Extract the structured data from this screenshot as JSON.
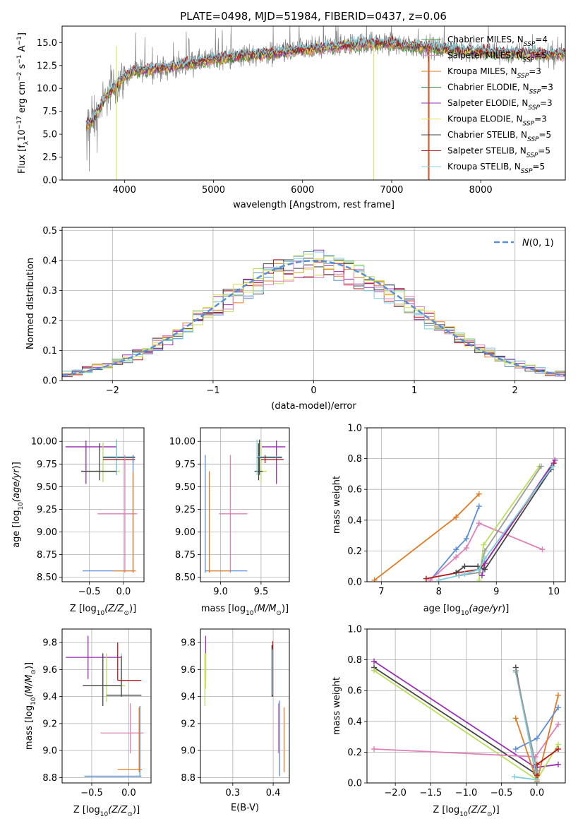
{
  "figure_title": "PLATE=0498, MJD=51984, FIBERID=0437, z=0.06",
  "colors": {
    "data": "#808080",
    "Chabrier MILES": "#4c9a3c",
    "Salpeter MILES": "#e28fd0",
    "Kroupa MILES": "#e07b22",
    "Chabrier ELODIE": "#3f7f3f",
    "Salpeter ELODIE": "#9a2fb5",
    "Kroupa ELODIE": "#e2e24a",
    "Chabrier STELIB": "#444444",
    "Salpeter STELIB": "#b51818",
    "Kroupa STELIB": "#7ccfe0",
    "blue": "#5b8ed8",
    "pink": "#e07fb8",
    "orange": "#e07b22",
    "lime": "#b8e05a",
    "purple": "#9a2fb5",
    "dark": "#444444",
    "gray": "#9a9a9a",
    "teal": "#7ccfe0",
    "red": "#b51818",
    "yellow": "#d8e04a"
  },
  "chart_data": [
    {
      "id": "spectrum",
      "type": "line",
      "title": "PLATE=0498, MJD=51984, FIBERID=0437, z=0.06",
      "xlabel": "wavelength [Angstrom, rest frame]",
      "ylabel": "Flux [f_λ 10^-17 erg cm^-2 s^-1 A^-1]",
      "xlim": [
        3300,
        8950
      ],
      "ylim": [
        0,
        16.8
      ],
      "xticks": [
        "4000",
        "5000",
        "6000",
        "7000",
        "8000"
      ],
      "yticks": [
        "0.0",
        "2.5",
        "5.0",
        "7.5",
        "10.0",
        "12.5",
        "15.0"
      ],
      "legend": [
        "Chabrier MILES, N_SSP=4",
        "Salpeter MILES, N_SSP=5",
        "Kroupa MILES, N_SSP=3",
        "Chabrier ELODIE, N_SSP=3",
        "Salpeter ELODIE, N_SSP=3",
        "Kroupa ELODIE, N_SSP=3",
        "Chabrier STELIB, N_SSP=5",
        "Salpeter STELIB, N_SSP=5",
        "Kroupa STELIB, N_SSP=5"
      ],
      "legend_display": [
        {
          "pre": "Chabrier MILES, N",
          "sub": "SSP",
          "post": "=4"
        },
        {
          "pre": "Salpeter MILES, N",
          "sub": "SSP",
          "post": "=5"
        },
        {
          "pre": "Kroupa MILES, N",
          "sub": "SSP",
          "post": "=3"
        },
        {
          "pre": "Chabrier ELODIE, N",
          "sub": "SSP",
          "post": "=3"
        },
        {
          "pre": "Salpeter ELODIE, N",
          "sub": "SSP",
          "post": "=3"
        },
        {
          "pre": "Kroupa ELODIE, N",
          "sub": "SSP",
          "post": "=3"
        },
        {
          "pre": "Chabrier STELIB, N",
          "sub": "SSP",
          "post": "=5"
        },
        {
          "pre": "Salpeter STELIB, N",
          "sub": "SSP",
          "post": "=5"
        },
        {
          "pre": "Kroupa STELIB, N",
          "sub": "SSP",
          "post": "=5"
        }
      ],
      "legend_position": "upper-right",
      "continuum": {
        "x": [
          3570,
          3650,
          3700,
          3800,
          3900,
          4000,
          4100,
          4200,
          4300,
          4500,
          4800,
          5000,
          5200,
          5500,
          5800,
          6000,
          6300,
          6500,
          6700,
          7000,
          7300,
          7600,
          8000,
          8400,
          8900
        ],
        "y": [
          6.0,
          6.5,
          7.6,
          9.2,
          10.3,
          11.3,
          11.8,
          12.0,
          12.1,
          12.3,
          12.8,
          13.2,
          13.4,
          13.7,
          14.0,
          14.2,
          14.5,
          14.7,
          14.9,
          14.9,
          14.6,
          14.3,
          14.0,
          13.8,
          13.7
        ]
      }
    },
    {
      "id": "residuals",
      "type": "line",
      "xlabel": "(data-model)/error",
      "ylabel": "Normed distribution",
      "xlim": [
        -2.5,
        2.5
      ],
      "ylim": [
        0,
        0.51
      ],
      "xticks": [
        "−2",
        "−1",
        "0",
        "1",
        "2"
      ],
      "xtick_values": [
        -2,
        -1,
        0,
        1,
        2
      ],
      "yticks": [
        "0.0",
        "0.1",
        "0.2",
        "0.3",
        "0.4",
        "0.5"
      ],
      "legend": [
        "N(0,1)"
      ],
      "legend_position": "upper-right",
      "gaussian": {
        "mean": 0,
        "sigma": 1
      }
    },
    {
      "id": "age_vs_Z",
      "type": "scatter",
      "xlabel": "Z [log10(Z/Z⊙)]",
      "ylabel": "age  [log10(age/yr)]",
      "xlim": [
        -0.9,
        0.3
      ],
      "ylim": [
        8.45,
        10.15
      ],
      "xticks": [
        "−0.5",
        "0.0"
      ],
      "xtick_values": [
        -0.5,
        0.0
      ],
      "yticks": [
        "8.50",
        "8.75",
        "9.00",
        "9.25",
        "9.50",
        "9.75",
        "10.00"
      ],
      "errorbars": [
        {
          "x": -0.55,
          "y": 9.94,
          "x0": -0.85,
          "x1": -0.1,
          "y0": 9.53,
          "y1": 10.01,
          "color": "purple"
        },
        {
          "x": -0.3,
          "y": 9.67,
          "x0": -0.62,
          "x1": -0.05,
          "y0": 9.55,
          "y1": 9.99,
          "color": "lime"
        },
        {
          "x": -0.35,
          "y": 9.67,
          "x0": -0.62,
          "x1": -0.1,
          "y0": 9.57,
          "y1": 9.98,
          "color": "dark"
        },
        {
          "x": -0.1,
          "y": 9.82,
          "x0": -0.3,
          "x1": 0.17,
          "y0": 9.63,
          "y1": 10.02,
          "color": "dark"
        },
        {
          "x": -0.1,
          "y": 9.83,
          "x0": -0.3,
          "x1": 0.17,
          "y0": 9.63,
          "y1": 10.02,
          "color": "teal"
        },
        {
          "x": 0.14,
          "y": 9.8,
          "x0": -0.3,
          "x1": 0.17,
          "y0": 9.76,
          "y1": 9.85,
          "color": "red"
        },
        {
          "x": 0.02,
          "y": 9.2,
          "x0": -0.38,
          "x1": 0.2,
          "y0": 8.55,
          "y1": 9.85,
          "color": "pink"
        },
        {
          "x": 0.14,
          "y": 8.57,
          "x0": -0.6,
          "x1": 0.17,
          "y0": 8.55,
          "y1": 9.85,
          "color": "blue"
        },
        {
          "x": 0.14,
          "y": 8.57,
          "x0": -0.15,
          "x1": 0.18,
          "y0": 8.55,
          "y1": 9.67,
          "color": "orange"
        }
      ]
    },
    {
      "id": "age_vs_mass",
      "type": "scatter",
      "xlabel": "mass [log10(M/M⊙)]",
      "ylabel": "",
      "xlim": [
        8.75,
        9.85
      ],
      "ylim": [
        8.45,
        10.15
      ],
      "xticks": [
        "9.0",
        "9.5"
      ],
      "xtick_values": [
        9.0,
        9.5
      ],
      "yticks": [
        "8.50",
        "8.75",
        "9.00",
        "9.25",
        "9.50",
        "9.75",
        "10.00"
      ],
      "errorbars": [
        {
          "x": 9.69,
          "y": 9.94,
          "x0": 9.51,
          "x1": 9.8,
          "y0": 9.53,
          "y1": 10.01,
          "color": "purple"
        },
        {
          "x": 9.5,
          "y": 9.67,
          "x0": 9.42,
          "x1": 9.57,
          "y0": 9.55,
          "y1": 9.99,
          "color": "lime"
        },
        {
          "x": 9.47,
          "y": 9.67,
          "x0": 9.42,
          "x1": 9.52,
          "y0": 9.57,
          "y1": 9.98,
          "color": "dark"
        },
        {
          "x": 9.48,
          "y": 9.82,
          "x0": 9.45,
          "x1": 9.76,
          "y0": 9.63,
          "y1": 10.02,
          "color": "dark"
        },
        {
          "x": 9.45,
          "y": 9.83,
          "x0": 9.45,
          "x1": 9.76,
          "y0": 9.63,
          "y1": 10.02,
          "color": "teal"
        },
        {
          "x": 9.55,
          "y": 9.8,
          "x0": 9.5,
          "x1": 9.78,
          "y0": 9.76,
          "y1": 9.85,
          "color": "red"
        },
        {
          "x": 9.12,
          "y": 9.2,
          "x0": 8.98,
          "x1": 9.33,
          "y0": 8.55,
          "y1": 9.85,
          "color": "pink"
        },
        {
          "x": 8.81,
          "y": 8.57,
          "x0": 8.81,
          "x1": 9.33,
          "y0": 8.55,
          "y1": 9.85,
          "color": "blue"
        },
        {
          "x": 8.86,
          "y": 8.57,
          "x0": 8.84,
          "x1": 9.12,
          "y0": 8.55,
          "y1": 9.67,
          "color": "orange"
        }
      ]
    },
    {
      "id": "mass_weight_vs_age",
      "type": "line",
      "xlabel": "age  [log10(age/yr)]",
      "ylabel": "mass weight",
      "xlim": [
        6.75,
        10.2
      ],
      "ylim": [
        0,
        1.0
      ],
      "xticks": [
        "7",
        "8",
        "9",
        "10"
      ],
      "xtick_values": [
        7,
        8,
        9,
        10
      ],
      "yticks": [
        "0.0",
        "0.2",
        "0.4",
        "0.6",
        "0.8",
        "1.0"
      ],
      "series": [
        {
          "color": "orange",
          "x": [
            6.88,
            8.3,
            8.7
          ],
          "y": [
            0.01,
            0.42,
            0.57
          ]
        },
        {
          "color": "blue",
          "x": [
            7.85,
            8.3,
            8.48,
            8.7
          ],
          "y": [
            0.01,
            0.21,
            0.28,
            0.49
          ]
        },
        {
          "color": "pink",
          "x": [
            7.85,
            8.3,
            8.48,
            8.7,
            9.8
          ],
          "y": [
            0.01,
            0.16,
            0.22,
            0.38,
            0.21
          ]
        },
        {
          "color": "lime",
          "x": [
            8.7,
            8.78,
            9.75
          ],
          "y": [
            0.01,
            0.24,
            0.75
          ]
        },
        {
          "color": "red",
          "x": [
            7.78,
            8.35,
            8.7,
            8.8,
            10.0
          ],
          "y": [
            0.02,
            0.06,
            0.08,
            0.12,
            0.77
          ]
        },
        {
          "color": "purple",
          "x": [
            8.75,
            8.8,
            10.02
          ],
          "y": [
            0.04,
            0.12,
            0.79
          ]
        },
        {
          "color": "dark",
          "x": [
            8.3,
            8.45,
            8.68,
            8.8,
            9.95
          ],
          "y": [
            0.06,
            0.1,
            0.1,
            0.08,
            0.73
          ]
        },
        {
          "color": "gray",
          "x": [
            8.35,
            8.7,
            8.8,
            9.78
          ],
          "y": [
            0.04,
            0.06,
            0.2,
            0.75
          ]
        },
        {
          "color": "teal",
          "x": [
            8.0,
            8.45,
            8.7,
            8.8,
            9.98
          ],
          "y": [
            0.01,
            0.05,
            0.08,
            0.15,
            0.75
          ]
        }
      ]
    },
    {
      "id": "mass_vs_Z",
      "type": "scatter",
      "xlabel": "Z [log10(Z/Z⊙)]",
      "ylabel": "mass [log10(M/M⊙)]",
      "xlim": [
        -0.9,
        0.3
      ],
      "ylim": [
        8.76,
        9.9
      ],
      "xticks": [
        "−0.5",
        "0.0"
      ],
      "xtick_values": [
        -0.5,
        0.0
      ],
      "yticks": [
        "8.8",
        "9.0",
        "9.2",
        "9.4",
        "9.6",
        "9.8"
      ],
      "errorbars": [
        {
          "x": -0.55,
          "y": 9.69,
          "x0": -0.85,
          "x1": -0.1,
          "y0": 9.53,
          "y1": 9.85,
          "color": "purple"
        },
        {
          "x": -0.3,
          "y": 9.48,
          "x0": -0.62,
          "x1": -0.05,
          "y0": 9.36,
          "y1": 9.72,
          "color": "lime"
        },
        {
          "x": -0.35,
          "y": 9.48,
          "x0": -0.62,
          "x1": -0.1,
          "y0": 9.33,
          "y1": 9.72,
          "color": "dark"
        },
        {
          "x": -0.1,
          "y": 9.41,
          "x0": -0.3,
          "x1": 0.17,
          "y0": 9.4,
          "y1": 9.72,
          "color": "teal"
        },
        {
          "x": -0.1,
          "y": 9.41,
          "x0": -0.3,
          "x1": 0.17,
          "y0": 9.4,
          "y1": 9.7,
          "color": "dark"
        },
        {
          "x": -0.15,
          "y": 9.52,
          "x0": -0.15,
          "x1": 0.17,
          "y0": 9.52,
          "y1": 9.8,
          "color": "red"
        },
        {
          "x": 0.02,
          "y": 9.13,
          "x0": -0.38,
          "x1": 0.2,
          "y0": 8.98,
          "y1": 9.35,
          "color": "pink"
        },
        {
          "x": 0.15,
          "y": 8.81,
          "x0": -0.6,
          "x1": 0.17,
          "y0": 8.81,
          "y1": 9.33,
          "color": "blue"
        },
        {
          "x": 0.14,
          "y": 8.86,
          "x0": -0.15,
          "x1": 0.18,
          "y0": 8.84,
          "y1": 9.32,
          "color": "orange"
        }
      ]
    },
    {
      "id": "ebv",
      "type": "scatter",
      "xlabel": "E(B-V)",
      "ylabel": "",
      "xlim": [
        0.22,
        0.44
      ],
      "ylim": [
        8.76,
        9.9
      ],
      "xticks": [
        "0.3",
        "0.4"
      ],
      "xtick_values": [
        0.3,
        0.4
      ],
      "yticks": [
        "8.8",
        "9.0",
        "9.2",
        "9.4",
        "9.6",
        "9.8"
      ],
      "vbars": [
        {
          "x": 0.233,
          "y0": 9.53,
          "y1": 9.85,
          "color": "purple"
        },
        {
          "x": 0.231,
          "y0": 9.33,
          "y1": 9.72,
          "color": "lime"
        },
        {
          "x": 0.233,
          "y0": 9.46,
          "y1": 9.72,
          "color": "yellow"
        },
        {
          "x": 0.397,
          "y0": 9.4,
          "y1": 9.78,
          "color": "dark"
        },
        {
          "x": 0.399,
          "y0": 9.4,
          "y1": 9.81,
          "color": "red"
        },
        {
          "x": 0.398,
          "y0": 9.41,
          "y1": 9.75,
          "color": "teal"
        },
        {
          "x": 0.413,
          "y0": 8.98,
          "y1": 9.35,
          "color": "pink"
        },
        {
          "x": 0.416,
          "y0": 8.81,
          "y1": 9.37,
          "color": "blue"
        },
        {
          "x": 0.427,
          "y0": 8.84,
          "y1": 9.32,
          "color": "orange"
        }
      ]
    },
    {
      "id": "mass_weight_vs_Z",
      "type": "line",
      "xlabel": "Z [log10(Z/Z⊙)]",
      "ylabel": "mass weight",
      "xlim": [
        -2.4,
        0.4
      ],
      "ylim": [
        0,
        1.0
      ],
      "xticks": [
        "−2.0",
        "−1.5",
        "−1.0",
        "−0.5",
        "0.0"
      ],
      "xtick_values": [
        -2.0,
        -1.5,
        -1.0,
        -0.5,
        0.0
      ],
      "yticks": [
        "0.0",
        "0.2",
        "0.4",
        "0.6",
        "0.8",
        "1.0"
      ],
      "series": [
        {
          "color": "purple",
          "x": [
            -2.3,
            -0.02,
            0.3
          ],
          "y": [
            0.79,
            0.1,
            0.12
          ]
        },
        {
          "color": "dark",
          "x": [
            -2.3,
            -0.02,
            -0.3
          ],
          "y": [
            0.75,
            0.06,
            0.75
          ]
        },
        {
          "color": "lime",
          "x": [
            -2.3,
            0.0,
            0.3
          ],
          "y": [
            0.73,
            0.02,
            0.25
          ]
        },
        {
          "color": "pink",
          "x": [
            -2.3,
            -0.02,
            0.3
          ],
          "y": [
            0.22,
            0.17,
            0.38
          ]
        },
        {
          "color": "orange",
          "x": [
            -0.3,
            0.0,
            0.3
          ],
          "y": [
            0.42,
            0.01,
            0.57
          ]
        },
        {
          "color": "blue",
          "x": [
            -0.3,
            0.0,
            0.3
          ],
          "y": [
            0.22,
            0.29,
            0.49
          ]
        },
        {
          "color": "teal",
          "x": [
            -0.3,
            0.0,
            -0.32
          ],
          "y": [
            0.72,
            0.02,
            0.04
          ]
        },
        {
          "color": "red",
          "x": [
            0.0,
            0.0,
            0.3
          ],
          "y": [
            0.05,
            0.12,
            0.22
          ]
        },
        {
          "color": "gray",
          "x": [
            -0.3,
            0.0
          ],
          "y": [
            0.73,
            0.08
          ]
        }
      ]
    }
  ]
}
